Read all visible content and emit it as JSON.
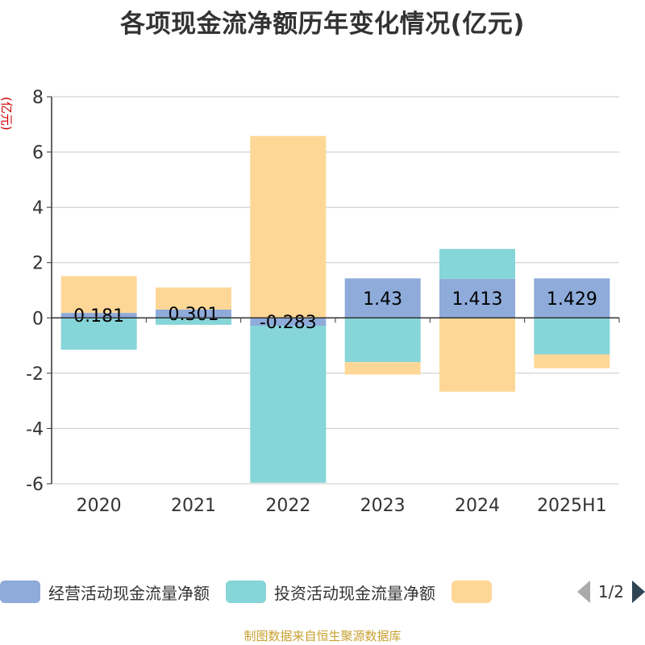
{
  "title": "各项现金流净额历年变化情况(亿元)",
  "source_note": "制图数据来自恒生聚源数据库",
  "legend": {
    "page": "1/2"
  },
  "colors": {
    "operating": "#8eabda",
    "investing": "#86d5d8",
    "financing": "#fed797",
    "axis": "#333333",
    "grid": "#c8c8c8",
    "unit": "#cc0000"
  },
  "chart_data": {
    "type": "bar",
    "stacked": true,
    "title": "各项现金流净额历年变化情况(亿元)",
    "ylabel": "(亿元)",
    "ylim": [
      -6,
      8
    ],
    "yticks": [
      -6,
      -4,
      -2,
      0,
      2,
      4,
      6,
      8
    ],
    "grid": true,
    "legend_position": "bottom",
    "categories": [
      "2020",
      "2021",
      "2022",
      "2023",
      "2024",
      "2025H1"
    ],
    "series": [
      {
        "name": "经营活动现金流量净额",
        "values": [
          0.181,
          0.301,
          -0.283,
          1.43,
          1.413,
          1.429
        ],
        "labels": [
          "0.181",
          "0.301",
          "-0.283",
          "1.43",
          "1.413",
          "1.429"
        ]
      },
      {
        "name": "投资活动现金流量净额",
        "values": [
          -1.15,
          -0.25,
          -5.68,
          -1.6,
          1.08,
          -1.32
        ]
      },
      {
        "values": [
          1.33,
          0.8,
          6.58,
          -0.45,
          -2.67,
          -0.5
        ]
      }
    ]
  }
}
